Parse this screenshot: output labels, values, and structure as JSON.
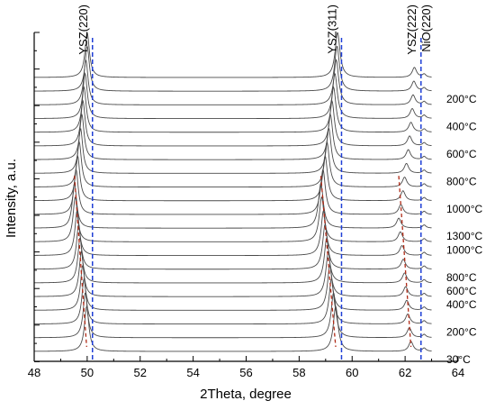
{
  "chart_data": {
    "type": "line",
    "xlabel": "2Theta, degree",
    "ylabel": "Intensity, a.u.",
    "xlim": [
      48,
      64
    ],
    "x_ticks": [
      "48",
      "50",
      "52",
      "54",
      "56",
      "58",
      "60",
      "62",
      "64"
    ],
    "y_ticks_labeled": false,
    "reference_lines": [
      {
        "label": "YSZ(220)",
        "x": 50.2,
        "style": "dashed",
        "color": "#1f3fd6"
      },
      {
        "label": "YSZ(311)",
        "x": 59.6,
        "style": "dashed",
        "color": "#1f3fd6"
      },
      {
        "label": "YSZ(222)",
        "x": 62.6,
        "style": "dashed",
        "color": "#1f3fd6"
      },
      {
        "label": "NiO(220)",
        "x": 62.6,
        "style": "dashed",
        "color": "#1f3fd6"
      }
    ],
    "temperature_labels": [
      {
        "text": "200°C",
        "trace": 1
      },
      {
        "text": "400°C",
        "trace": 3
      },
      {
        "text": "600°C",
        "trace": 5
      },
      {
        "text": "800°C",
        "trace": 7
      },
      {
        "text": "1000°C",
        "trace": 9
      },
      {
        "text": "1300°C",
        "trace": 11
      },
      {
        "text": "1000°C",
        "trace": 12
      },
      {
        "text": "800°C",
        "trace": 14
      },
      {
        "text": "600°C",
        "trace": 15
      },
      {
        "text": "400°C",
        "trace": 16
      },
      {
        "text": "200°C",
        "trace": 18
      },
      {
        "text": "30°C",
        "trace": 20
      }
    ],
    "traces": [
      {
        "p220": 50.0,
        "p311": 59.45,
        "p222": 62.35
      },
      {
        "p220": 50.0,
        "p311": 59.43,
        "p222": 62.33
      },
      {
        "p220": 49.95,
        "p311": 59.4,
        "p222": 62.3
      },
      {
        "p220": 49.92,
        "p311": 59.35,
        "p222": 62.27
      },
      {
        "p220": 49.88,
        "p311": 59.3,
        "p222": 62.22
      },
      {
        "p220": 49.84,
        "p311": 59.24,
        "p222": 62.17
      },
      {
        "p220": 49.8,
        "p311": 59.18,
        "p222": 62.12
      },
      {
        "p220": 49.75,
        "p311": 59.12,
        "p222": 62.05
      },
      {
        "p220": 49.7,
        "p311": 59.05,
        "p222": 61.98
      },
      {
        "p220": 49.64,
        "p311": 58.98,
        "p222": 61.92
      },
      {
        "p220": 49.58,
        "p311": 58.9,
        "p222": 61.84
      },
      {
        "p220": 49.52,
        "p311": 58.82,
        "p222": 61.76
      },
      {
        "p220": 49.55,
        "p311": 58.85,
        "p222": 61.82
      },
      {
        "p220": 49.62,
        "p311": 58.92,
        "p222": 61.88
      },
      {
        "p220": 49.68,
        "p311": 58.98,
        "p222": 61.93
      },
      {
        "p220": 49.73,
        "p311": 59.04,
        "p222": 61.98
      },
      {
        "p220": 49.78,
        "p311": 59.1,
        "p222": 62.02
      },
      {
        "p220": 49.83,
        "p311": 59.16,
        "p222": 62.06
      },
      {
        "p220": 49.88,
        "p311": 59.22,
        "p222": 62.1
      },
      {
        "p220": 49.93,
        "p311": 59.3,
        "p222": 62.16
      },
      {
        "p220": 49.98,
        "p311": 59.38,
        "p222": 62.22
      }
    ],
    "shift_lines": [
      {
        "color": "#b02b17",
        "points": [
          [
            49.52,
            11
          ],
          [
            49.98,
            20
          ]
        ],
        "peak": "p220"
      },
      {
        "color": "#b02b17",
        "points": [
          [
            58.82,
            11
          ],
          [
            59.38,
            20
          ]
        ],
        "peak": "p311"
      },
      {
        "color": "#b02b17",
        "points": [
          [
            61.76,
            11
          ],
          [
            62.22,
            20
          ]
        ],
        "peak": "p222"
      }
    ],
    "grid": false,
    "legend": "none"
  }
}
